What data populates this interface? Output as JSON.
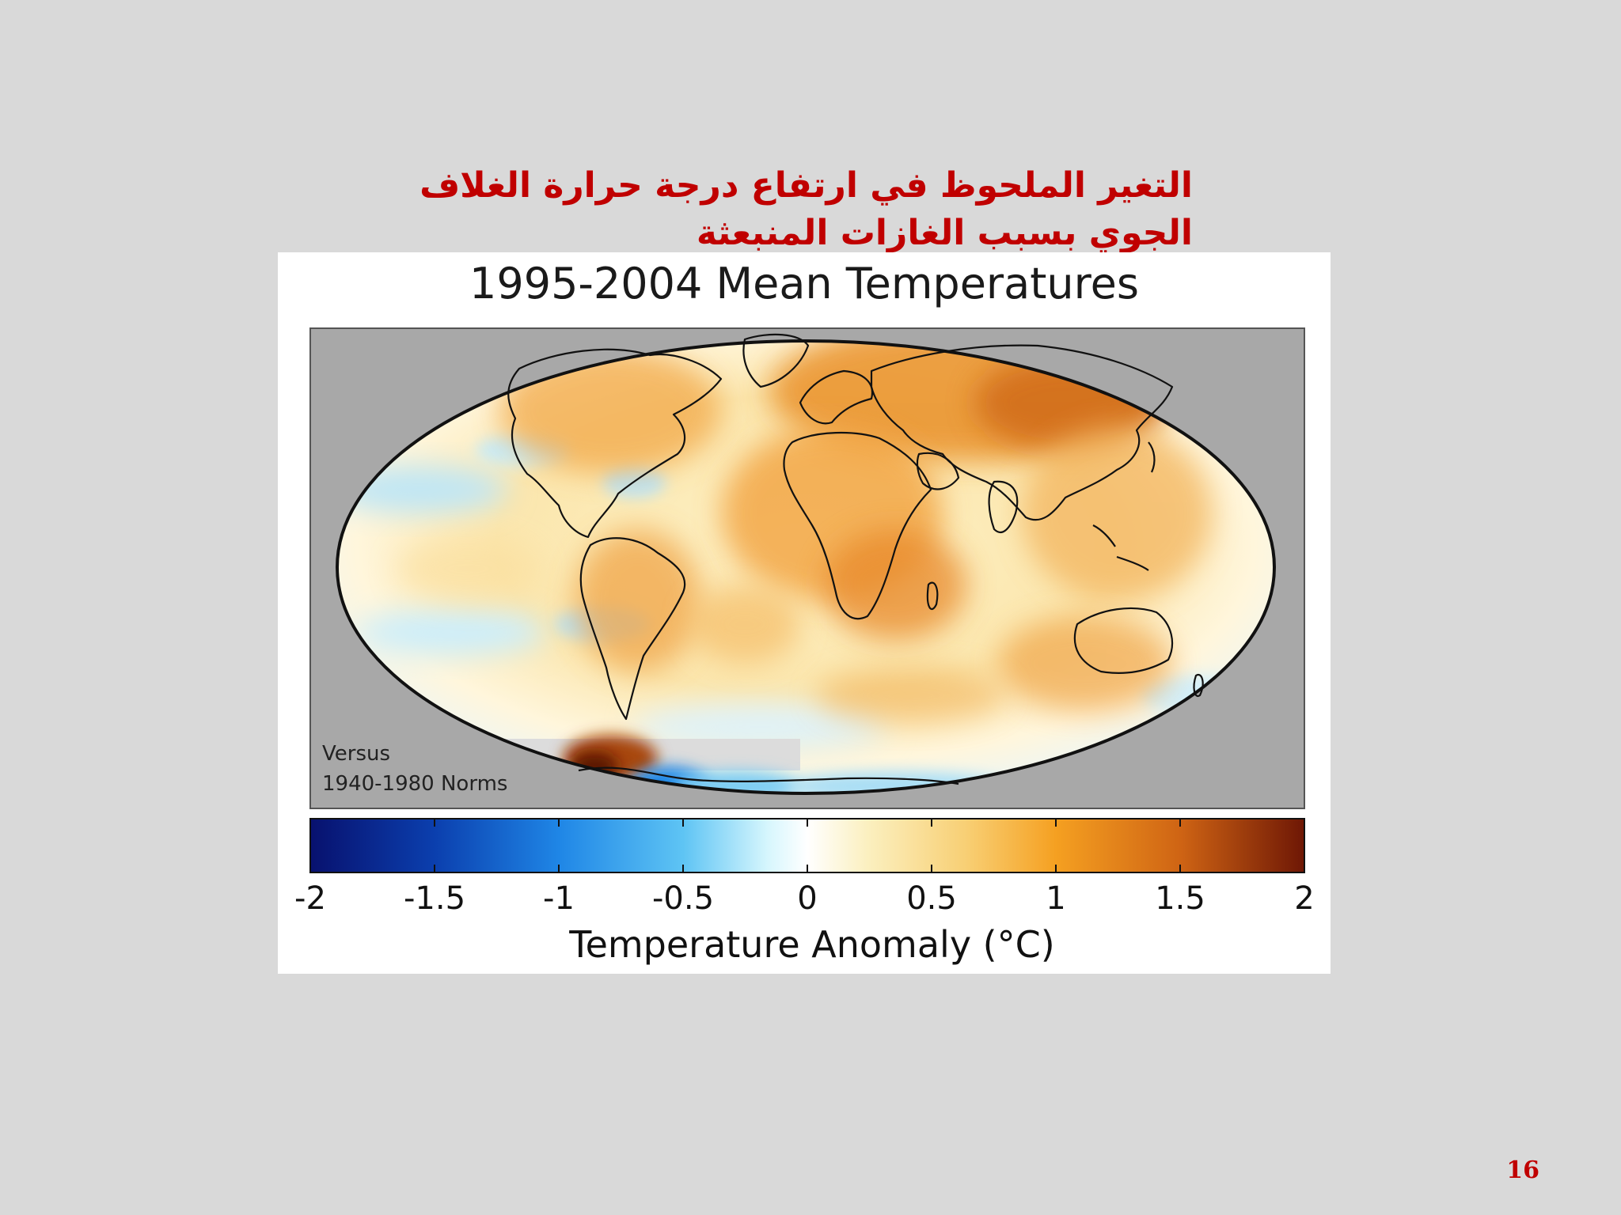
{
  "slide": {
    "title_lines": [
      "التغير الملحوظ في ارتفاع درجة حرارة الغلاف",
      "الجوي بسبب الغازات المنبعثة"
    ],
    "page_number": "16"
  },
  "figure": {
    "title": "1995-2004 Mean Temperatures",
    "note_lines": [
      "Versus",
      "1940-1980 Norms"
    ],
    "projection": "ellipse-world-map",
    "background_color": "#a8a8a8",
    "colorbar": {
      "label": "Temperature Anomaly (°C)",
      "min": -2,
      "max": 2,
      "ticks": [
        -2,
        -1.5,
        -1,
        -0.5,
        0,
        0.5,
        1,
        1.5,
        2
      ],
      "tick_labels": [
        "-2",
        "-1.5",
        "-1",
        "-0.5",
        "0",
        "0.5",
        "1",
        "1.5",
        "2"
      ],
      "colors": [
        "#08116e",
        "#0d5fd1",
        "#3ea6ee",
        "#bfeefb",
        "#ffffff",
        "#fbe9a6",
        "#f6ad3c",
        "#cf6a16",
        "#6e1705"
      ]
    }
  }
}
